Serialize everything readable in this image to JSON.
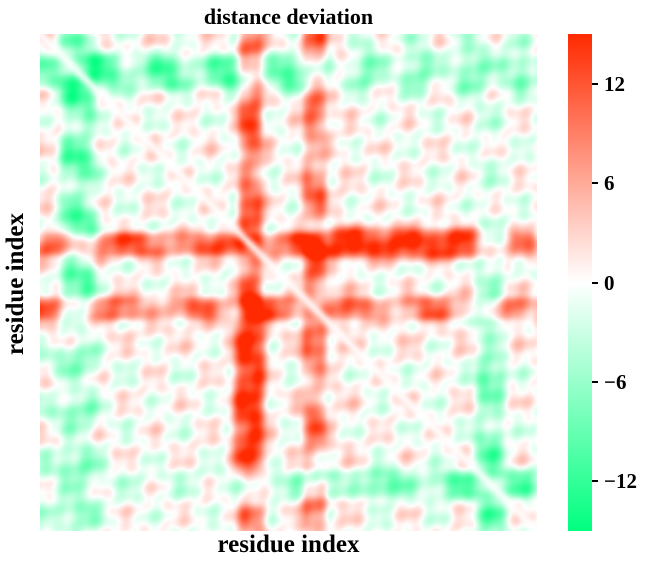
{
  "chart_data": {
    "type": "heatmap",
    "title": "distance deviation",
    "xlabel": "residue index",
    "ylabel": "residue index",
    "symmetric": true,
    "colormap": {
      "min": -15,
      "max": 15,
      "low_color": "#00ff7f",
      "mid_color": "#ffffff",
      "high_color": "#ff2a00"
    },
    "colorbar_ticks": [
      {
        "value": 12,
        "label": "12"
      },
      {
        "value": 6,
        "label": "6"
      },
      {
        "value": 0,
        "label": "0"
      },
      {
        "value": -6,
        "label": "−6"
      },
      {
        "value": -12,
        "label": "−12"
      }
    ],
    "grid": false,
    "approximate_feature_bands": {
      "strong_positive_band_rows_x_fraction": [
        0.52,
        0.57
      ],
      "strong_positive_vertical_band": [
        0.42,
        0.45
      ],
      "negative_band_low": [
        0.04,
        0.11
      ],
      "negative_band_high": [
        0.89,
        0.93
      ],
      "positive_block": [
        0.4,
        0.45,
        0.6,
        0.88
      ]
    }
  }
}
